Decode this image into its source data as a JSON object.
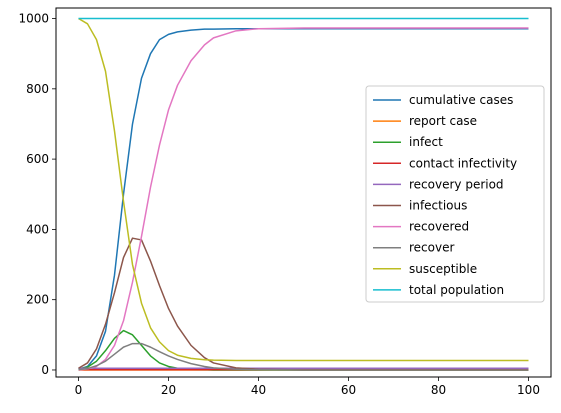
{
  "chart_data": {
    "type": "line",
    "title": "",
    "xlabel": "",
    "ylabel": "",
    "xlim": [
      -5,
      105
    ],
    "ylim": [
      -20,
      1030
    ],
    "xticks": [
      "0",
      "20",
      "40",
      "60",
      "80",
      "100"
    ],
    "yticks": [
      "0",
      "200",
      "400",
      "600",
      "800",
      "1000"
    ],
    "grid": false,
    "legend_position": "center-right",
    "x": [
      0,
      2,
      4,
      6,
      8,
      10,
      12,
      14,
      16,
      18,
      20,
      22,
      25,
      28,
      30,
      35,
      40,
      50,
      60,
      70,
      80,
      90,
      100
    ],
    "series": [
      {
        "name": "cumulative cases",
        "color": "#1f77b4",
        "values": [
          2,
          10,
          40,
          110,
          270,
          500,
          700,
          830,
          900,
          940,
          955,
          962,
          967,
          970,
          970,
          971,
          971,
          971,
          971,
          971,
          971,
          971,
          971
        ]
      },
      {
        "name": "report case",
        "color": "#ff7f0e",
        "values": [
          0,
          0,
          0,
          0,
          0,
          0,
          0,
          0,
          0,
          0,
          0,
          0,
          0,
          0,
          0,
          0,
          0,
          0,
          0,
          0,
          0,
          0,
          0
        ]
      },
      {
        "name": "infect",
        "color": "#2ca02c",
        "values": [
          3,
          8,
          25,
          55,
          90,
          112,
          100,
          70,
          40,
          20,
          10,
          5,
          2,
          1,
          0,
          0,
          0,
          0,
          0,
          0,
          0,
          0,
          0
        ]
      },
      {
        "name": "contact infectivity",
        "color": "#d62728",
        "values": [
          1,
          1,
          1,
          1,
          1,
          1,
          1,
          1,
          1,
          1,
          1,
          1,
          1,
          1,
          1,
          1,
          1,
          1,
          1,
          1,
          1,
          1,
          1
        ]
      },
      {
        "name": "recovery period",
        "color": "#9467bd",
        "values": [
          5,
          5,
          5,
          5,
          5,
          5,
          5,
          5,
          5,
          5,
          5,
          5,
          5,
          5,
          5,
          5,
          5,
          5,
          5,
          5,
          5,
          5,
          5
        ]
      },
      {
        "name": "infectious",
        "color": "#8c564b",
        "values": [
          5,
          20,
          60,
          130,
          220,
          320,
          375,
          370,
          310,
          240,
          175,
          125,
          70,
          35,
          20,
          6,
          2,
          0,
          0,
          0,
          0,
          0,
          0
        ]
      },
      {
        "name": "recovered",
        "color": "#e377c2",
        "values": [
          0,
          3,
          10,
          30,
          70,
          140,
          250,
          380,
          520,
          640,
          740,
          810,
          880,
          925,
          945,
          965,
          971,
          973,
          973,
          973,
          973,
          973,
          973
        ]
      },
      {
        "name": "recover",
        "color": "#7f7f7f",
        "values": [
          1,
          4,
          12,
          25,
          45,
          65,
          75,
          75,
          65,
          52,
          40,
          30,
          18,
          10,
          6,
          2,
          1,
          0,
          0,
          0,
          0,
          0,
          0
        ]
      },
      {
        "name": "susceptible",
        "color": "#bcbd22",
        "values": [
          1000,
          985,
          940,
          850,
          680,
          480,
          300,
          190,
          120,
          80,
          55,
          42,
          33,
          29,
          28,
          27,
          27,
          27,
          27,
          27,
          27,
          27,
          27
        ]
      },
      {
        "name": "total population",
        "color": "#17becf",
        "values": [
          1000,
          1000,
          1000,
          1000,
          1000,
          1000,
          1000,
          1000,
          1000,
          1000,
          1000,
          1000,
          1000,
          1000,
          1000,
          1000,
          1000,
          1000,
          1000,
          1000,
          1000,
          1000,
          1000
        ]
      }
    ]
  }
}
